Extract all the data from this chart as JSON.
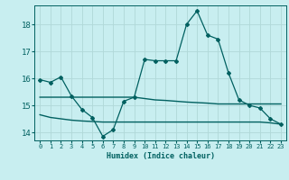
{
  "xlabel": "Humidex (Indice chaleur)",
  "background_color": "#c8eef0",
  "grid_color": "#b0d8d8",
  "line_color": "#006060",
  "xlim": [
    -0.5,
    23.5
  ],
  "ylim": [
    13.7,
    18.7
  ],
  "yticks": [
    14,
    15,
    16,
    17,
    18
  ],
  "xticks": [
    0,
    1,
    2,
    3,
    4,
    5,
    6,
    7,
    8,
    9,
    10,
    11,
    12,
    13,
    14,
    15,
    16,
    17,
    18,
    19,
    20,
    21,
    22,
    23
  ],
  "line1_x": [
    0,
    1,
    2,
    3,
    4,
    5,
    6,
    7,
    8,
    9,
    10,
    11,
    12,
    13,
    14,
    15,
    16,
    17,
    18,
    19,
    20,
    21,
    22,
    23
  ],
  "line1_y": [
    15.95,
    15.85,
    16.05,
    15.35,
    14.85,
    14.55,
    13.85,
    14.1,
    15.15,
    15.3,
    16.7,
    16.65,
    16.65,
    16.65,
    18.0,
    18.5,
    17.6,
    17.45,
    16.2,
    15.2,
    15.0,
    14.9,
    14.5,
    14.3
  ],
  "line2_x": [
    0,
    1,
    2,
    3,
    4,
    5,
    6,
    7,
    8,
    9,
    10,
    11,
    12,
    13,
    14,
    15,
    16,
    17,
    18,
    19,
    20,
    21,
    22,
    23
  ],
  "line2_y": [
    15.3,
    15.3,
    15.3,
    15.3,
    15.3,
    15.3,
    15.3,
    15.3,
    15.3,
    15.3,
    15.25,
    15.2,
    15.18,
    15.15,
    15.12,
    15.1,
    15.08,
    15.05,
    15.05,
    15.05,
    15.05,
    15.05,
    15.05,
    15.05
  ],
  "line3_x": [
    0,
    1,
    2,
    3,
    4,
    5,
    6,
    7,
    8,
    9,
    10,
    11,
    12,
    13,
    14,
    15,
    16,
    17,
    18,
    19,
    20,
    21,
    22,
    23
  ],
  "line3_y": [
    14.65,
    14.55,
    14.5,
    14.45,
    14.42,
    14.4,
    14.38,
    14.38,
    14.38,
    14.38,
    14.38,
    14.38,
    14.38,
    14.38,
    14.38,
    14.38,
    14.38,
    14.38,
    14.38,
    14.38,
    14.38,
    14.38,
    14.35,
    14.3
  ]
}
